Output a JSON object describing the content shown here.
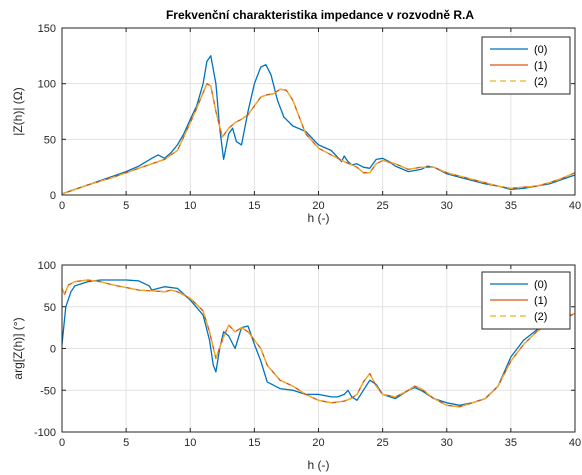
{
  "chart_data": [
    {
      "type": "line",
      "title": "Frekvenční charakteristika impedance v rozvodně R.A",
      "xlabel": "h (-)",
      "ylabel": "|Z(h)| (Ω)",
      "xlim": [
        0,
        40
      ],
      "ylim": [
        0,
        150
      ],
      "xticks": [
        "0",
        "5",
        "10",
        "15",
        "20",
        "25",
        "30",
        "35",
        "40"
      ],
      "yticks": [
        "0",
        "50",
        "100",
        "150"
      ],
      "grid": true,
      "legend_position": "top-right",
      "series": [
        {
          "name": "(0)",
          "color": "#0072BD",
          "dash": "solid",
          "x": [
            0,
            1,
            2,
            3,
            4,
            5,
            6,
            7,
            7.5,
            8,
            8.5,
            9,
            9.5,
            10,
            10.5,
            11,
            11.3,
            11.6,
            12,
            12.3,
            12.6,
            13,
            13.3,
            13.6,
            14,
            14.5,
            15,
            15.5,
            15.9,
            16.3,
            16.8,
            17.3,
            18,
            19,
            20,
            21,
            21.8,
            22,
            22.3,
            22.6,
            23,
            23.5,
            24,
            24.5,
            25,
            25.5,
            26,
            27,
            28,
            28.5,
            29,
            30,
            31,
            32,
            33,
            34,
            35,
            36,
            37,
            38,
            39,
            40
          ],
          "values": [
            1,
            5,
            9,
            13,
            17,
            21,
            26,
            33,
            36,
            33,
            38,
            45,
            55,
            68,
            80,
            100,
            120,
            125,
            100,
            60,
            32,
            55,
            60,
            48,
            45,
            75,
            100,
            115,
            117,
            108,
            85,
            70,
            62,
            57,
            45,
            40,
            30,
            35,
            30,
            27,
            28,
            25,
            24,
            32,
            33,
            30,
            26,
            21,
            23,
            26,
            25,
            19,
            16,
            13,
            10,
            8,
            5,
            6,
            8,
            10,
            14,
            18
          ]
        },
        {
          "name": "(1)",
          "color": "#D95319",
          "dash": "solid",
          "x": [
            0,
            2,
            4,
            6,
            7,
            8,
            9,
            10,
            10.5,
            11,
            11.3,
            11.6,
            12,
            12.5,
            13,
            13.5,
            14,
            14.5,
            15,
            15.5,
            16,
            16.5,
            17,
            17.5,
            18,
            19,
            20,
            21,
            22,
            23,
            23.5,
            24,
            24.5,
            25,
            26,
            27,
            28,
            29,
            30,
            31,
            32,
            33,
            34,
            35,
            36,
            37,
            38,
            39,
            40
          ],
          "values": [
            1,
            9,
            16,
            24,
            28,
            32,
            40,
            65,
            78,
            92,
            100,
            98,
            75,
            52,
            60,
            65,
            68,
            72,
            80,
            88,
            90,
            91,
            95,
            94,
            85,
            55,
            42,
            36,
            30,
            25,
            20,
            20,
            28,
            31,
            28,
            23,
            25,
            25,
            20,
            17,
            14,
            11,
            8,
            6,
            7,
            8,
            11,
            15,
            20
          ]
        },
        {
          "name": "(2)",
          "color": "#EDB120",
          "dash": "dashed",
          "x": [
            0,
            2,
            4,
            6,
            7,
            8,
            9,
            10,
            10.5,
            11,
            11.3,
            11.6,
            12,
            12.5,
            13,
            13.5,
            14,
            14.5,
            15,
            15.5,
            16,
            16.5,
            17,
            17.5,
            18,
            19,
            20,
            21,
            22,
            23,
            23.5,
            24,
            24.5,
            25,
            26,
            27,
            28,
            29,
            30,
            31,
            32,
            33,
            34,
            35,
            36,
            37,
            38,
            39,
            40
          ],
          "values": [
            1,
            9,
            16,
            24,
            28,
            32,
            40,
            65,
            78,
            92,
            100,
            98,
            75,
            52,
            60,
            65,
            68,
            72,
            80,
            88,
            90,
            91,
            95,
            94,
            85,
            55,
            42,
            36,
            30,
            25,
            20,
            20,
            28,
            31,
            28,
            23,
            25,
            25,
            20,
            17,
            14,
            11,
            8,
            6,
            7,
            8,
            11,
            15,
            20
          ]
        }
      ]
    },
    {
      "type": "line",
      "title": "",
      "xlabel": "h (-)",
      "ylabel": "arg[Z(h)] (°)",
      "xlim": [
        0,
        40
      ],
      "ylim": [
        -100,
        100
      ],
      "xticks": [
        "0",
        "5",
        "10",
        "15",
        "20",
        "25",
        "30",
        "35",
        "40"
      ],
      "yticks": [
        "-100",
        "-50",
        "0",
        "50",
        "100"
      ],
      "grid": true,
      "legend_position": "top-right",
      "series": [
        {
          "name": "(0)",
          "color": "#0072BD",
          "dash": "solid",
          "x": [
            0,
            0.3,
            0.7,
            1,
            2,
            3,
            4,
            5,
            6,
            6.8,
            7,
            7.5,
            8,
            9,
            10,
            11,
            11.5,
            11.8,
            12,
            12.3,
            12.6,
            13,
            13.5,
            14,
            14.5,
            15,
            15.5,
            16,
            17,
            18,
            19,
            20,
            21,
            21.5,
            22,
            22.3,
            22.6,
            23,
            23.5,
            24,
            24.5,
            25,
            26,
            27,
            27.5,
            28,
            29,
            30,
            31,
            32,
            33,
            34,
            35,
            36,
            37,
            38,
            39,
            40
          ],
          "values": [
            5,
            50,
            68,
            75,
            80,
            82,
            82,
            82,
            81,
            75,
            70,
            72,
            74,
            72,
            58,
            40,
            10,
            -20,
            -28,
            0,
            20,
            15,
            0,
            25,
            27,
            5,
            -15,
            -40,
            -48,
            -50,
            -55,
            -55,
            -58,
            -58,
            -55,
            -50,
            -58,
            -62,
            -50,
            -38,
            -43,
            -55,
            -60,
            -50,
            -47,
            -50,
            -60,
            -65,
            -68,
            -65,
            -60,
            -45,
            -10,
            10,
            22,
            32,
            35,
            42
          ]
        },
        {
          "name": "(1)",
          "color": "#D95319",
          "dash": "solid",
          "x": [
            0,
            0.2,
            0.5,
            1,
            2,
            3,
            4,
            5,
            6,
            7,
            8,
            8.5,
            9,
            10,
            11,
            11.5,
            12,
            12.5,
            13,
            13.5,
            14,
            14.5,
            15,
            15.5,
            16,
            17,
            18,
            19,
            20,
            21,
            22,
            22.5,
            23,
            23.5,
            24,
            24.5,
            25,
            26,
            27,
            27.5,
            28,
            29,
            30,
            31,
            32,
            33,
            34,
            35,
            36,
            37,
            38,
            39,
            40
          ],
          "values": [
            72,
            65,
            76,
            80,
            82,
            80,
            76,
            73,
            70,
            69,
            68,
            70,
            68,
            60,
            45,
            20,
            -12,
            10,
            28,
            20,
            25,
            20,
            10,
            0,
            -20,
            -38,
            -45,
            -55,
            -62,
            -65,
            -63,
            -60,
            -55,
            -40,
            -30,
            -45,
            -55,
            -58,
            -50,
            -45,
            -48,
            -60,
            -68,
            -70,
            -65,
            -60,
            -45,
            -15,
            5,
            20,
            30,
            35,
            42
          ]
        },
        {
          "name": "(2)",
          "color": "#EDB120",
          "dash": "dashed",
          "x": [
            0,
            0.2,
            0.5,
            1,
            2,
            3,
            4,
            5,
            6,
            7,
            8,
            8.5,
            9,
            10,
            11,
            11.5,
            12,
            12.5,
            13,
            13.5,
            14,
            14.5,
            15,
            15.5,
            16,
            17,
            18,
            19,
            20,
            21,
            22,
            22.5,
            23,
            23.5,
            24,
            24.5,
            25,
            26,
            27,
            27.5,
            28,
            29,
            30,
            31,
            32,
            33,
            34,
            35,
            36,
            37,
            38,
            39,
            40
          ],
          "values": [
            72,
            65,
            76,
            80,
            82,
            80,
            76,
            73,
            70,
            69,
            68,
            70,
            68,
            60,
            45,
            20,
            -12,
            10,
            28,
            20,
            25,
            20,
            10,
            0,
            -20,
            -38,
            -45,
            -55,
            -62,
            -65,
            -63,
            -60,
            -55,
            -40,
            -30,
            -45,
            -55,
            -58,
            -50,
            -45,
            -48,
            -60,
            -68,
            -70,
            -65,
            -60,
            -45,
            -15,
            5,
            20,
            30,
            35,
            42
          ]
        }
      ]
    }
  ]
}
